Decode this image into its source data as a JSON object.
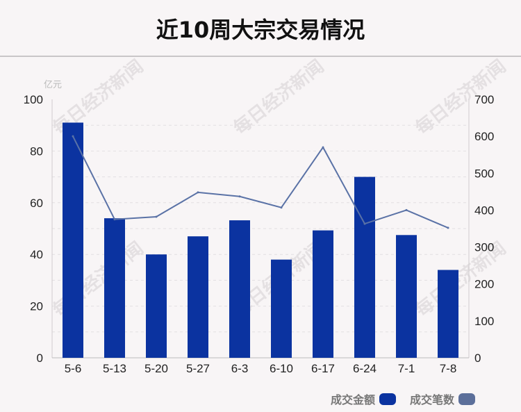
{
  "title": "近10周大宗交易情况",
  "watermark_text": "每日经济新闻",
  "left_unit": "亿元",
  "left_ticks": [
    "100",
    "80",
    "60",
    "40",
    "20",
    "0"
  ],
  "right_ticks": [
    "700",
    "600",
    "500",
    "400",
    "300",
    "200",
    "100",
    "0"
  ],
  "legend": {
    "bar_label": "成交金额",
    "line_label": "成交笔数"
  },
  "colors": {
    "bar": "#0b33a0",
    "line": "#5a72a6",
    "line_swatch": "#5c6f9a"
  },
  "chart_data": {
    "type": "bar",
    "categories": [
      "5-6",
      "5-13",
      "5-20",
      "5-27",
      "6-3",
      "6-10",
      "6-17",
      "6-24",
      "7-1",
      "7-8"
    ],
    "series": [
      {
        "name": "成交金额",
        "type": "bar",
        "axis": "left",
        "values": [
          91,
          54,
          40,
          47,
          53.2,
          38,
          49.3,
          70,
          47.5,
          34
        ]
      },
      {
        "name": "成交笔数",
        "type": "line",
        "axis": "right",
        "values": [
          600,
          375,
          382,
          448,
          437,
          407,
          570,
          363,
          400,
          352
        ]
      }
    ],
    "ylim_left": [
      0,
      100
    ],
    "ylim_right": [
      0,
      700
    ],
    "ylabel_left": "亿元",
    "grid": true
  }
}
